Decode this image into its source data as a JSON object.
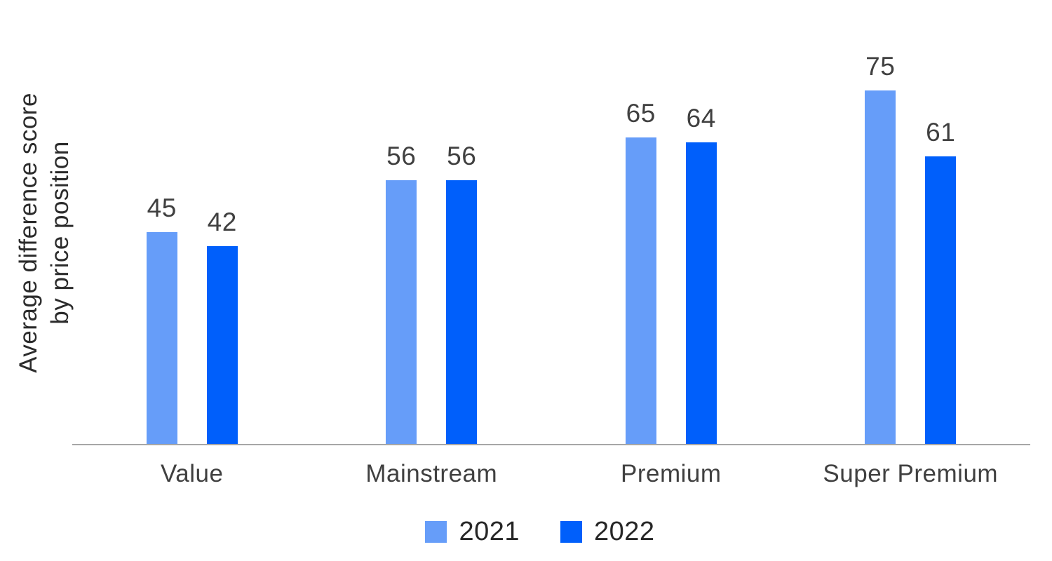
{
  "chart_data": {
    "type": "bar",
    "title": "",
    "ylabel": "Average difference score by price position",
    "ylabel_lines": [
      "Average difference score",
      "by price position"
    ],
    "xlabel": "",
    "categories": [
      "Value",
      "Mainstream",
      "Premium",
      "Super Premium"
    ],
    "series": [
      {
        "name": "2021",
        "color": "#669DF9",
        "values": [
          45,
          56,
          65,
          75
        ]
      },
      {
        "name": "2022",
        "color": "#005FFB",
        "values": [
          42,
          56,
          64,
          61
        ]
      }
    ],
    "ylim": [
      0,
      80
    ],
    "grid": false,
    "legend_position": "bottom",
    "value_labels_shown": true,
    "axis_color": "#A6A6A6",
    "value_label_color": "#404040",
    "category_label_color": "#404040"
  }
}
